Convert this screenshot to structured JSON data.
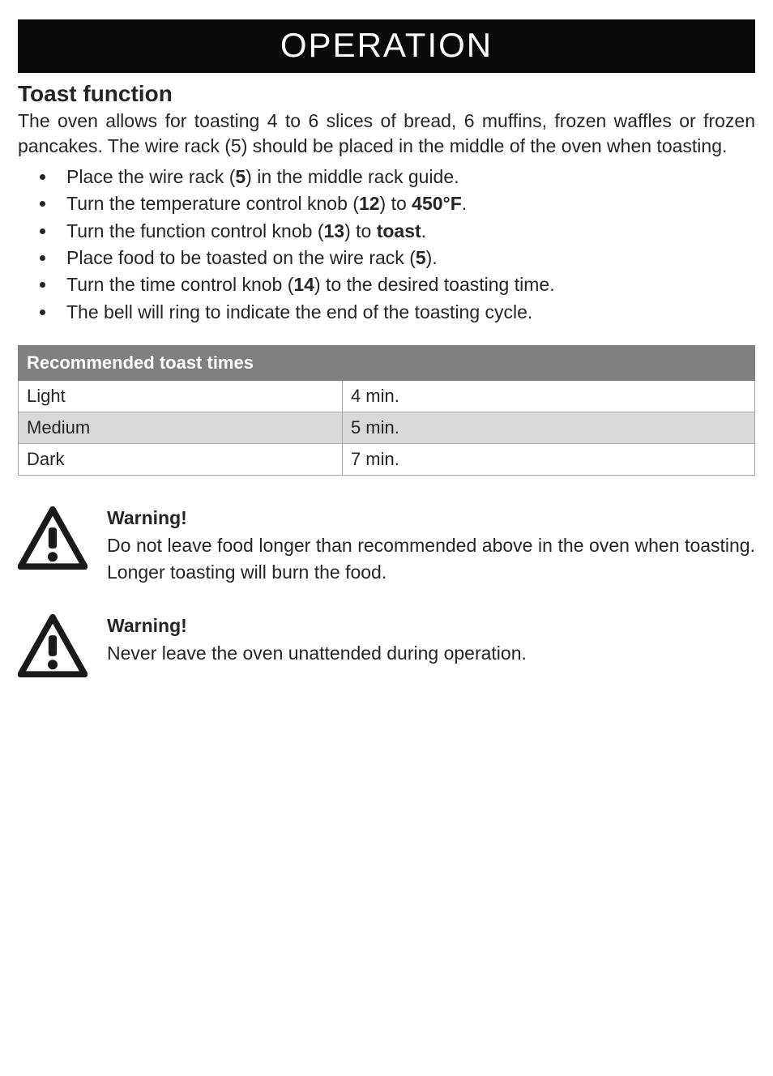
{
  "header": {
    "title": "OPERATION"
  },
  "section": {
    "title": "Toast function",
    "intro": "The oven allows for toasting 4 to 6 slices of bread, 6 muffins, frozen waffles or frozen pancakes. The wire rack (5) should be placed in the middle of the oven when toasting."
  },
  "steps": [
    {
      "pre": "Place the wire rack (",
      "bold": "5",
      "post": ") in the middle rack guide."
    },
    {
      "pre": "Turn the temperature control knob (",
      "bold": "12",
      "post": ") to ",
      "bold2": "450°F",
      "post2": "."
    },
    {
      "pre": "Turn the function control knob (",
      "bold": "13",
      "post": ") to ",
      "bold2": "toast",
      "post2": "."
    },
    {
      "pre": "Place food to be toasted on the wire rack (",
      "bold": "5",
      "post": ")."
    },
    {
      "pre": "Turn the time control knob (",
      "bold": "14",
      "post": ") to the desired toasting time."
    },
    {
      "pre": "The bell will ring to indicate the end of the toasting cycle."
    }
  ],
  "table": {
    "header": "Recommended toast times",
    "rows": [
      {
        "level": "Light",
        "time": "4 min.",
        "alt": false
      },
      {
        "level": "Medium",
        "time": "5 min.",
        "alt": true
      },
      {
        "level": "Dark",
        "time": "7 min.",
        "alt": false
      }
    ],
    "header_bg": "#808080",
    "header_fg": "#ffffff",
    "border_color": "#a8a8a8",
    "alt_bg": "#d9d9d9"
  },
  "warnings": [
    {
      "title": "Warning!",
      "body": "Do not leave food longer than recommended above in the oven when toasting. Longer toasting will burn the food."
    },
    {
      "title": "Warning!",
      "body": "Never leave the oven unattended during operation."
    }
  ],
  "colors": {
    "banner_bg": "#0a0a0a",
    "banner_fg": "#ffffff",
    "text": "#252525",
    "page_bg": "#ffffff"
  }
}
